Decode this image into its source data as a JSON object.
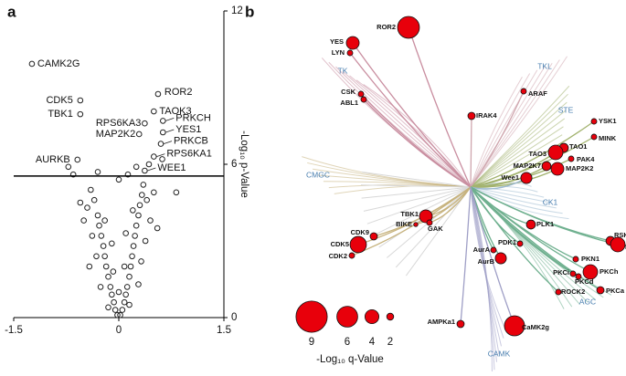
{
  "chart_data": [
    {
      "type": "scatter",
      "panel_label": "a",
      "y_label": "-Log₁₀ p-Value",
      "xlim": [
        -1.5,
        1.5
      ],
      "ylim": [
        0,
        12
      ],
      "xticks": [
        -1.5,
        0,
        1.5
      ],
      "yticks": [
        0,
        6,
        12
      ],
      "threshold": 5.54,
      "points": [
        {
          "label": "CAMK2G",
          "x": -1.24,
          "y": 9.93
        },
        {
          "label": "CDK5",
          "x": -0.55,
          "y": 8.5
        },
        {
          "label": "TBK1",
          "x": -0.55,
          "y": 7.96
        },
        {
          "label": "AURKB",
          "x": -0.59,
          "y": 6.18
        },
        {
          "label": "ROR2",
          "x": 0.56,
          "y": 8.75
        },
        {
          "label": "TAOK3",
          "x": 0.5,
          "y": 8.07
        },
        {
          "label": "RPS6KA3",
          "x": 0.37,
          "y": 7.6
        },
        {
          "label": "MAP2K2",
          "x": 0.29,
          "y": 7.18
        },
        {
          "label": "PRKCH",
          "x": 0.63,
          "y": 7.7
        },
        {
          "label": "YES1",
          "x": 0.63,
          "y": 7.25
        },
        {
          "label": "PRKCB",
          "x": 0.6,
          "y": 6.8
        },
        {
          "label": "RPS6KA1",
          "x": 0.5,
          "y": 6.3
        },
        {
          "label": "WEE1",
          "x": 0.37,
          "y": 5.75
        }
      ],
      "unlabeled": {
        "x": [
          -0.72,
          -0.65,
          -0.3,
          0.0,
          0.13,
          0.25,
          0.43,
          0.62,
          0.82,
          0.35,
          -0.4,
          -0.45,
          -0.35,
          -0.3,
          -0.28,
          -0.25,
          -0.22,
          -0.2,
          -0.18,
          -0.15,
          -0.12,
          -0.1,
          -0.07,
          -0.05,
          -0.02,
          0.02,
          0.05,
          0.08,
          0.1,
          0.12,
          0.15,
          0.17,
          0.19,
          0.21,
          0.23,
          0.25,
          0.28,
          0.3,
          0.33,
          0.4,
          0.45,
          0.38,
          0.32,
          -0.32,
          -0.38,
          -0.5,
          -0.42,
          -0.26,
          0.28,
          0.55,
          0.5,
          -0.55,
          -0.15,
          0.15,
          -0.08,
          0.08,
          0.0,
          -0.2,
          0.2,
          -0.1,
          0.1
        ],
        "y": [
          5.9,
          5.6,
          5.7,
          5.4,
          5.6,
          5.9,
          6.0,
          6.2,
          4.9,
          5.2,
          5.0,
          4.3,
          4.6,
          4.0,
          3.6,
          3.2,
          2.8,
          2.4,
          2.0,
          1.6,
          1.2,
          0.9,
          0.6,
          0.3,
          0.1,
          0.1,
          0.3,
          0.6,
          0.9,
          1.2,
          1.6,
          2.0,
          2.4,
          2.8,
          3.2,
          3.6,
          4.0,
          4.4,
          4.8,
          4.6,
          3.8,
          3.0,
          2.2,
          2.4,
          3.2,
          3.8,
          2.0,
          1.2,
          1.3,
          3.5,
          4.9,
          4.5,
          0.4,
          0.5,
          1.8,
          2.0,
          1.0,
          3.8,
          4.2,
          2.9,
          3.3
        ]
      }
    },
    {
      "type": "bubble-tree",
      "panel_label": "b",
      "groups": [
        "TK",
        "TKL",
        "STE",
        "CK1",
        "AGC",
        "CAMK",
        "CMGC"
      ],
      "nodes": [
        {
          "label": "ROR2",
          "size": 6.3
        },
        {
          "label": "YES",
          "size": 3.7
        },
        {
          "label": "LYN",
          "size": 1.6
        },
        {
          "label": "CSK",
          "size": 1.6
        },
        {
          "label": "ABL1",
          "size": 1.6
        },
        {
          "label": "ARAF",
          "size": 1.6
        },
        {
          "label": "IRAK4",
          "size": 2.1
        },
        {
          "label": "YSK1",
          "size": 1.6
        },
        {
          "label": "MINK",
          "size": 1.6
        },
        {
          "label": "TAO1",
          "size": 2.6
        },
        {
          "label": "TAO3",
          "size": 4.2
        },
        {
          "label": "PAK4",
          "size": 1.6
        },
        {
          "label": "MAP2K7",
          "size": 2.6
        },
        {
          "label": "MAP2K2",
          "size": 3.7
        },
        {
          "label": "Wee1",
          "size": 3.2
        },
        {
          "label": "TBK1",
          "size": 3.7
        },
        {
          "label": "GAK",
          "size": 1.6
        },
        {
          "label": "BIKE",
          "size": 1.2
        },
        {
          "label": "CDK9",
          "size": 2.1
        },
        {
          "label": "CDK5",
          "size": 4.7
        },
        {
          "label": "CDK2",
          "size": 1.6
        },
        {
          "label": "PLK1",
          "size": 2.6
        },
        {
          "label": "PDK1",
          "size": 1.6
        },
        {
          "label": "AurA",
          "size": 1.6
        },
        {
          "label": "AurB",
          "size": 3.2
        },
        {
          "label": "RSK3",
          "size": 2.6
        },
        {
          "label": "RSK2",
          "size": 4.2
        },
        {
          "label": "PKN1",
          "size": 1.6
        },
        {
          "label": "PKCh",
          "size": 4.2
        },
        {
          "label": "PKCi",
          "size": 1.6
        },
        {
          "label": "PKCd",
          "size": 1.6
        },
        {
          "label": "ROCK2",
          "size": 1.6
        },
        {
          "label": "PKCa",
          "size": 2.1
        },
        {
          "label": "AMPKa1",
          "size": 2.1
        },
        {
          "label": "CaMK2g",
          "size": 5.8
        }
      ],
      "size_legend": {
        "values": [
          9,
          6,
          4,
          2
        ],
        "title": "-Log₁₀ q-Value"
      }
    }
  ]
}
